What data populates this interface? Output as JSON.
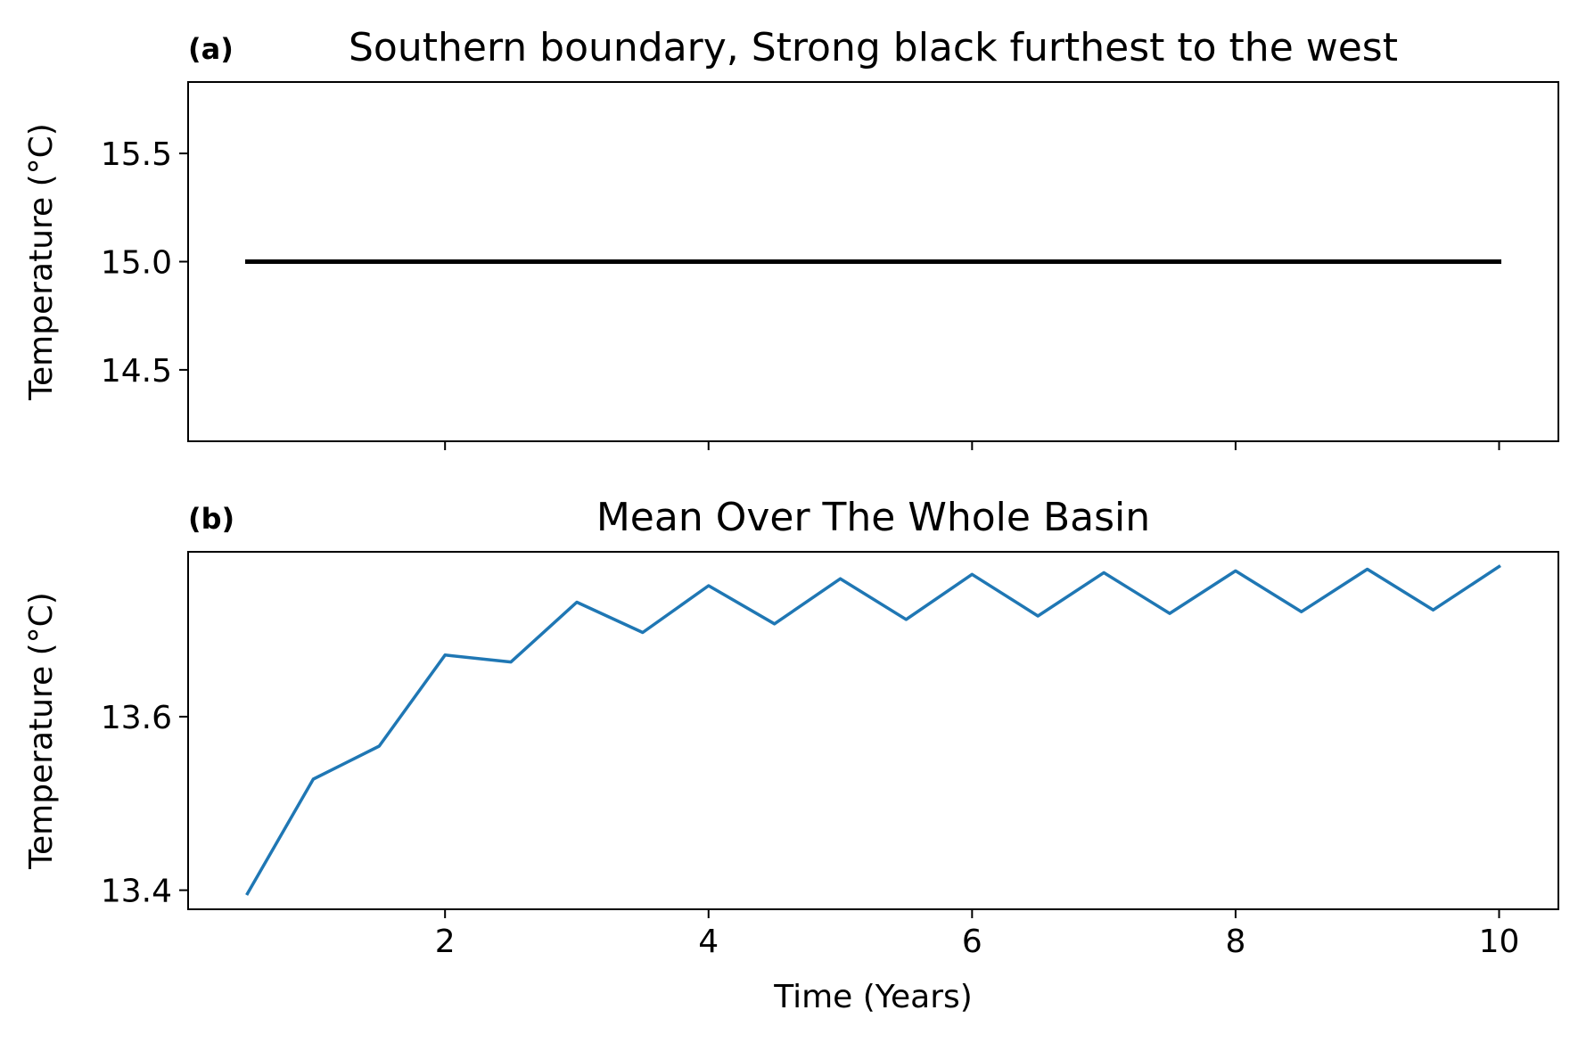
{
  "chart_data": [
    {
      "type": "line",
      "panel_label": "(a)",
      "title": "Southern boundary, Strong black furthest to the west",
      "xlabel": "",
      "ylabel": "Temperature (°C)",
      "xlim": [
        0.05,
        10.45
      ],
      "ylim": [
        14.17,
        15.83
      ],
      "xticks": [
        2,
        4,
        6,
        8,
        10
      ],
      "xtick_labels_visible": false,
      "yticks": [
        14.5,
        15.0,
        15.5
      ],
      "ytick_labels": [
        "14.5",
        "15.0",
        "15.5"
      ],
      "grid": false,
      "series": [
        {
          "color": "#000000",
          "x": [
            0.5,
            1.0,
            1.5,
            2.0,
            2.5,
            3.0,
            3.5,
            4.0,
            4.5,
            5.0,
            5.5,
            6.0,
            6.5,
            7.0,
            7.5,
            8.0,
            8.5,
            9.0,
            9.5,
            10.0
          ],
          "y": [
            15.0,
            15.0,
            15.0,
            15.0,
            15.0,
            15.0,
            15.0,
            15.0,
            15.0,
            15.0,
            15.0,
            15.0,
            15.0,
            15.0,
            15.0,
            15.0,
            15.0,
            15.0,
            15.0,
            15.0
          ]
        }
      ]
    },
    {
      "type": "line",
      "panel_label": "(b)",
      "title": "Mean Over The Whole Basin",
      "xlabel": "Time (Years)",
      "ylabel": "Temperature (°C)",
      "xlim": [
        0.05,
        10.45
      ],
      "ylim": [
        13.378,
        13.79
      ],
      "xticks": [
        2,
        4,
        6,
        8,
        10
      ],
      "xtick_labels": [
        "2",
        "4",
        "6",
        "8",
        "10"
      ],
      "yticks": [
        13.4,
        13.6
      ],
      "ytick_labels": [
        "13.4",
        "13.6"
      ],
      "grid": false,
      "series": [
        {
          "color": "#1f77b4",
          "x": [
            0.5,
            1.0,
            1.5,
            2.0,
            2.5,
            3.0,
            3.5,
            4.0,
            4.5,
            5.0,
            5.5,
            6.0,
            6.5,
            7.0,
            7.5,
            8.0,
            8.5,
            9.0,
            9.5,
            10.0
          ],
          "y": [
            13.396,
            13.528,
            13.566,
            13.671,
            13.663,
            13.732,
            13.697,
            13.751,
            13.707,
            13.759,
            13.712,
            13.764,
            13.716,
            13.766,
            13.719,
            13.768,
            13.721,
            13.77,
            13.723,
            13.773
          ]
        }
      ]
    }
  ]
}
